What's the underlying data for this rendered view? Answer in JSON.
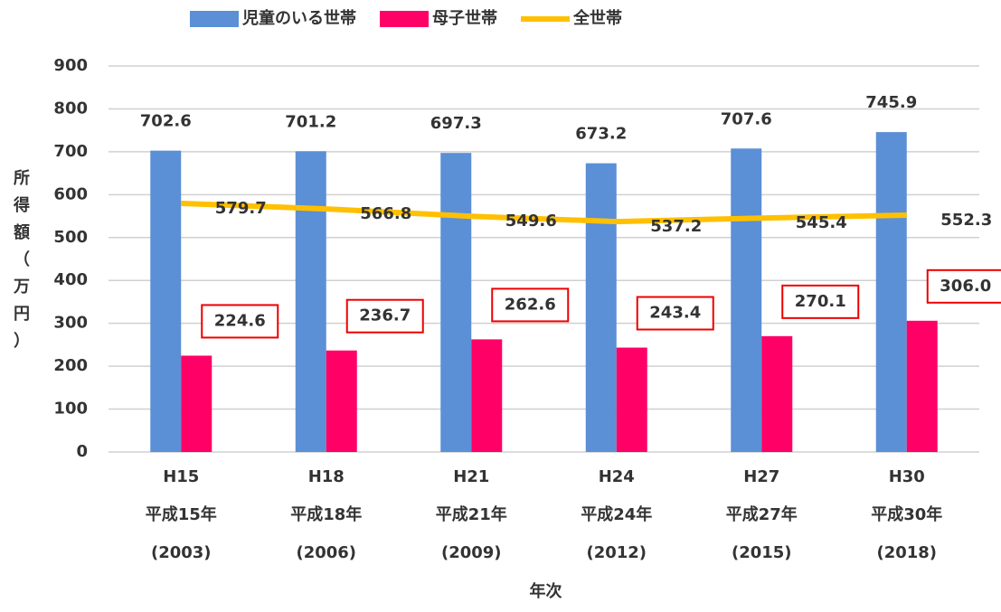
{
  "chart_data": {
    "type": "bar",
    "categories": [
      [
        "H15",
        "平成15年",
        "(2003)"
      ],
      [
        "H18",
        "平成18年",
        "(2006)"
      ],
      [
        "H21",
        "平成21年",
        "(2009)"
      ],
      [
        "H24",
        "平成24年",
        "(2012)"
      ],
      [
        "H27",
        "平成27年",
        "(2015)"
      ],
      [
        "H30",
        "平成30年",
        "(2018)"
      ]
    ],
    "series": [
      {
        "name": "児童のいる世帯",
        "color": "#5b8fd6",
        "values": [
          702.6,
          701.2,
          697.3,
          673.2,
          707.6,
          745.9
        ]
      },
      {
        "name": "母子世帯",
        "color": "#ff0066",
        "values": [
          224.6,
          236.7,
          262.6,
          243.4,
          270.1,
          306.0
        ],
        "value_labels": [
          "224.6",
          "236.7",
          "262.6",
          "243.4",
          "270.1",
          "306.0"
        ]
      },
      {
        "name": "全世帯",
        "color": "#ffc000",
        "type": "line",
        "values": [
          579.7,
          566.8,
          549.6,
          537.2,
          545.4,
          552.3
        ]
      }
    ],
    "ylabel": "所得額（万円）",
    "xlabel": "年次",
    "ylim": [
      0,
      900
    ],
    "yticks": [
      0,
      100,
      200,
      300,
      400,
      500,
      600,
      700,
      800,
      900
    ],
    "grid": true,
    "legend": "top"
  }
}
